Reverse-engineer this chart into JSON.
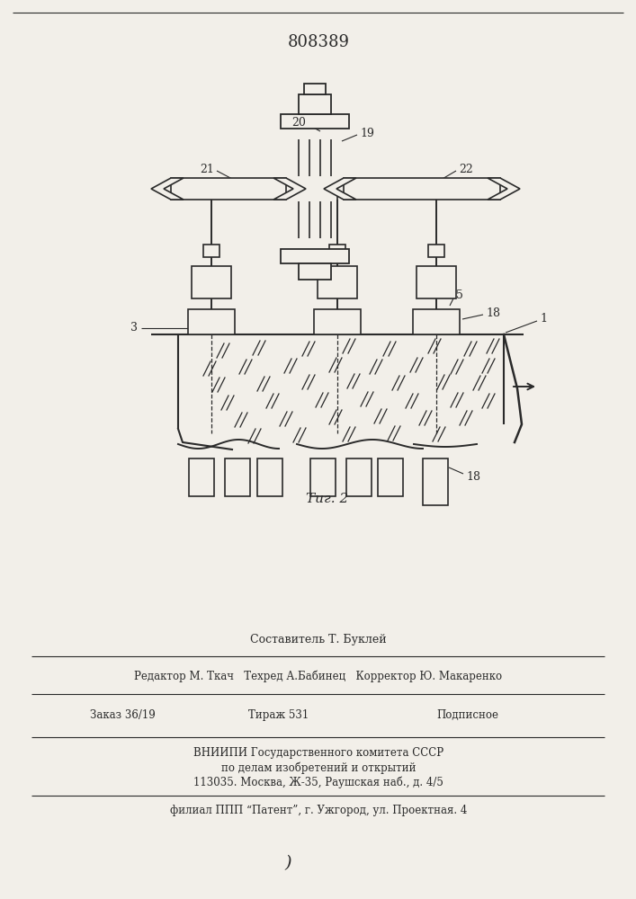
{
  "patent_number": "808389",
  "fig_label": "Τиг. 2",
  "background_color": "#f2efe9",
  "line_color": "#2a2a2a",
  "footer_line1": "Составитель Т. Буклей",
  "footer_line2": "Редактор М. Ткач   Техред А.Бабинец   Корректор Ю. Макаренко",
  "footer_line3a": "Заказ 36/19",
  "footer_line3b": "Тираж 531",
  "footer_line3c": "Подписное",
  "footer_line4": "ВНИИПИ Государственного комитета СССР",
  "footer_line5": "по делам изобретений и открытий",
  "footer_line6": "113035. Москва, Ж-35, Раушская наб., д. 4/5",
  "footer_line7": "филиал ППП “Патент”, г. Ужгород, ул. Проектная. 4"
}
